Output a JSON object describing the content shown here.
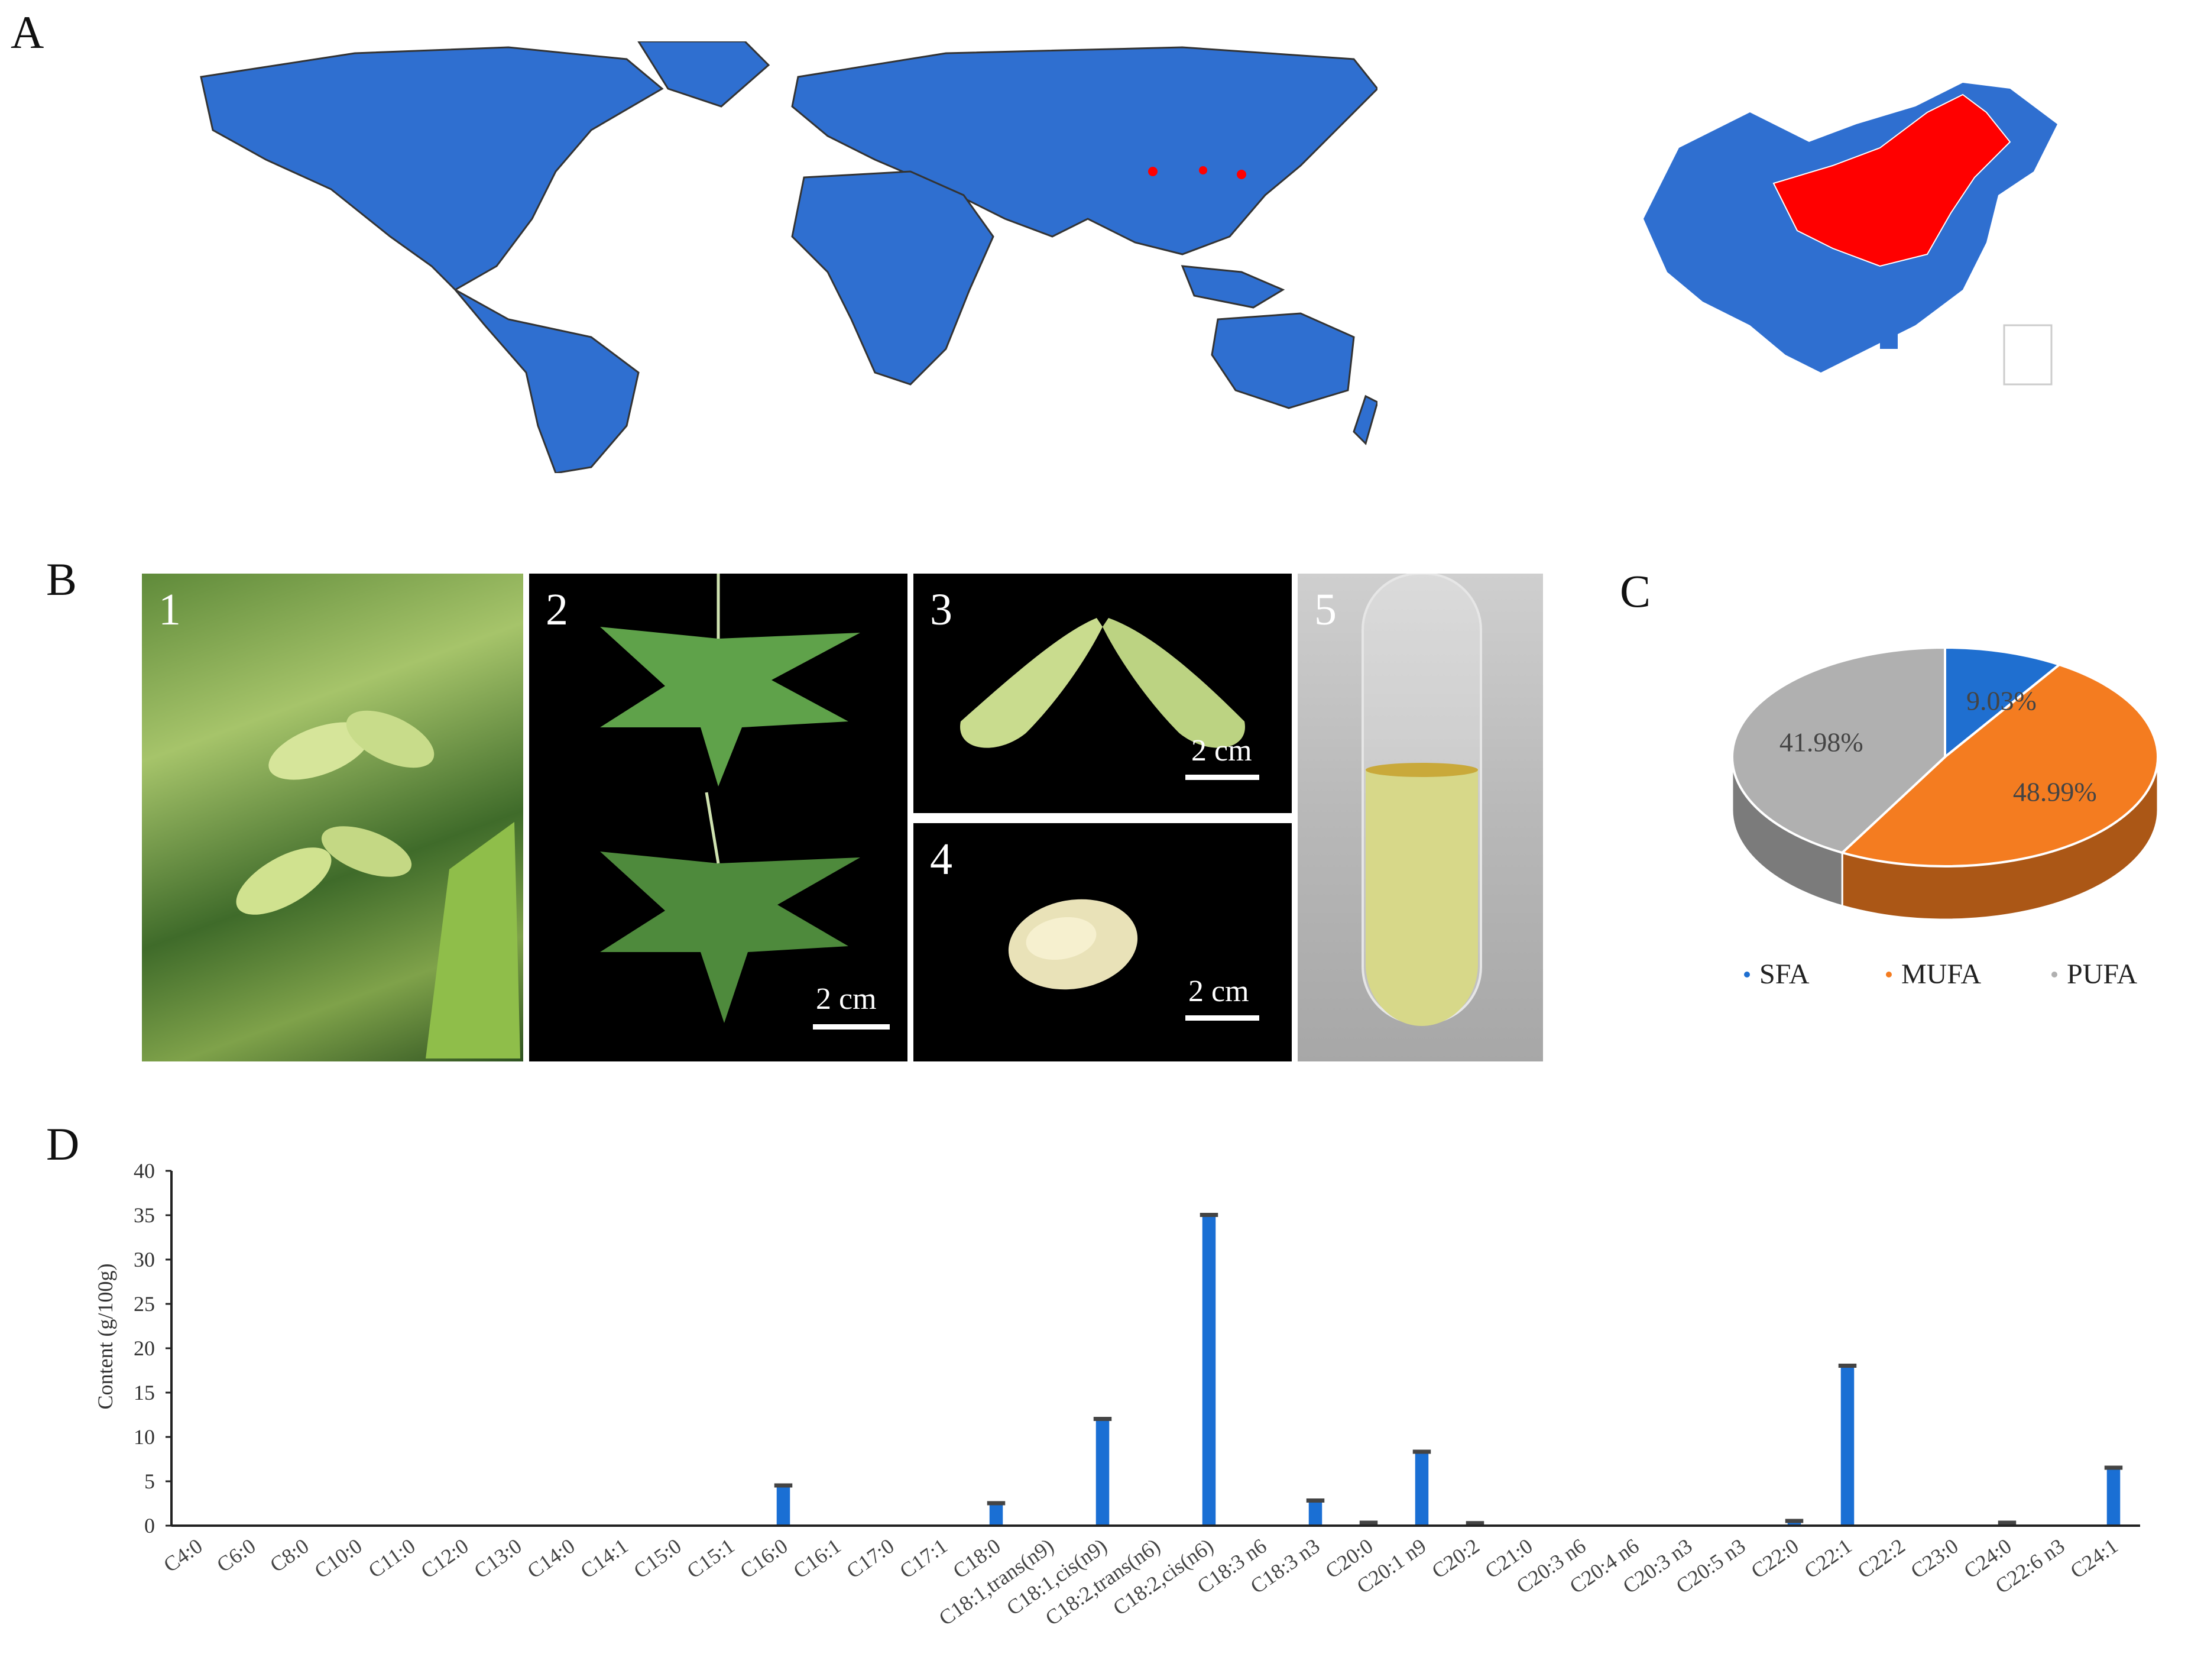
{
  "panels": {
    "a": "A",
    "b": "B",
    "c": "C",
    "d": "D"
  },
  "colors": {
    "land": "#2f6fd0",
    "highlight": "#ff0000",
    "sfa": "#1f6fd0",
    "mufa": "#f47c20",
    "pufa": "#b0b0b0",
    "bar": "#1a6fd4",
    "photo_bg": "#000000"
  },
  "photos": [
    {
      "num": "1",
      "scale": ""
    },
    {
      "num": "2",
      "scale": "2 cm"
    },
    {
      "num": "3",
      "scale": "2 cm"
    },
    {
      "num": "4",
      "scale": "2 cm"
    },
    {
      "num": "5",
      "scale": ""
    }
  ],
  "pie": {
    "type": "pie",
    "slices": [
      {
        "label": "SFA",
        "value": 9.03,
        "text": "9.03%"
      },
      {
        "label": "MUFA",
        "value": 48.99,
        "text": "48.99%"
      },
      {
        "label": "PUFA",
        "value": 41.98,
        "text": "41.98%"
      }
    ]
  },
  "chart_data": {
    "type": "bar",
    "ylabel": "Content (g/100g)",
    "ylim": [
      0,
      40
    ],
    "yticks": [
      "0",
      "5",
      "10",
      "15",
      "20",
      "25",
      "30",
      "35",
      "40"
    ],
    "categories": [
      "C4:0",
      "C6:0",
      "C8:0",
      "C10:0",
      "C11:0",
      "C12:0",
      "C13:0",
      "C14:0",
      "C14:1",
      "C15:0",
      "C15:1",
      "C16:0",
      "C16:1",
      "C17:0",
      "C17:1",
      "C18:0",
      "C18:1,trans(n9)",
      "C18:1,cis(n9)",
      "C18:2,trans(n6)",
      "C18:2,cis(n6)",
      "C18:3 n6",
      "C18:3 n3",
      "C20:0",
      "C20:1 n9",
      "C20:2",
      "C21:0",
      "C20:3 n6",
      "C20:4 n6",
      "C20:3 n3",
      "C20:5 n3",
      "C22:0",
      "C22:1",
      "C22:2",
      "C23:0",
      "C24:0",
      "C22:6 n3",
      "C24:1"
    ],
    "values": [
      0,
      0,
      0,
      0,
      0,
      0,
      0,
      0,
      0,
      0,
      0,
      4.5,
      0,
      0,
      0,
      2.5,
      0,
      12,
      0,
      35,
      0,
      2.8,
      0.3,
      8.3,
      0.25,
      0,
      0,
      0,
      0,
      0,
      0.5,
      18,
      0,
      0,
      0.3,
      0,
      6.5
    ]
  }
}
